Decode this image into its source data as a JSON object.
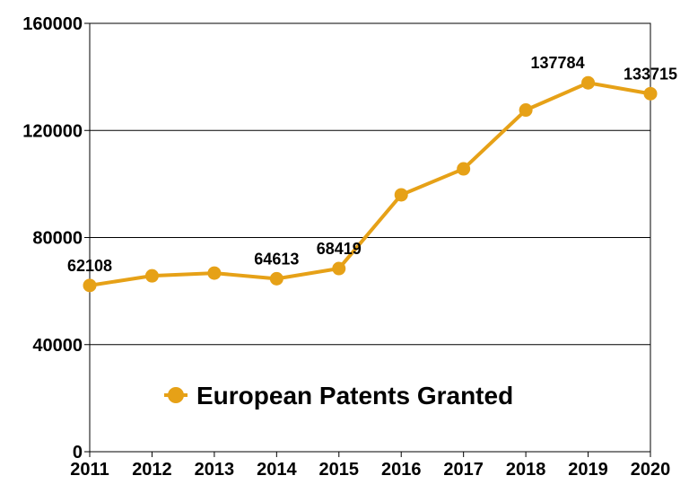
{
  "chart_data": {
    "type": "line",
    "x": [
      "2011",
      "2012",
      "2013",
      "2014",
      "2015",
      "2016",
      "2017",
      "2018",
      "2019",
      "2020"
    ],
    "series": [
      {
        "name": "European Patents Granted",
        "values": [
          62108,
          65690,
          66712,
          64613,
          68419,
          95940,
          105645,
          127625,
          137784,
          133715
        ],
        "color": "#E6A117"
      }
    ],
    "data_labels": [
      {
        "x": "2011",
        "text": "62108"
      },
      {
        "x": "2014",
        "text": "64613"
      },
      {
        "x": "2015",
        "text": "68419"
      },
      {
        "x": "2019",
        "text": "137784"
      },
      {
        "x": "2020",
        "text": "133715"
      }
    ],
    "ylim": [
      0,
      160000
    ],
    "yticks": [
      "0",
      "40000",
      "80000",
      "120000",
      "160000"
    ],
    "yticks_values": [
      0,
      40000,
      80000,
      120000,
      160000
    ],
    "grid": true,
    "legend_position": "center"
  }
}
